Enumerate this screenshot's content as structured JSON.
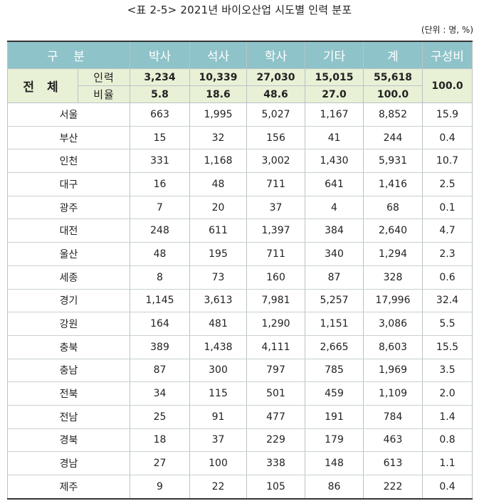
{
  "title": "<표 2-5> 2021년 바이오산업 시도별 인력 분포",
  "unit": "(단위 : 명, %)",
  "header": {
    "gubun": "구 분",
    "columns": [
      "박사",
      "석사",
      "학사",
      "기타",
      "계",
      "구성비"
    ]
  },
  "total": {
    "label": "전 체",
    "rows": [
      {
        "label": "인력",
        "values": [
          "3,234",
          "10,339",
          "27,030",
          "15,015",
          "55,618"
        ]
      },
      {
        "label": "비율",
        "values": [
          "5.8",
          "18.6",
          "48.6",
          "27.0",
          "100.0"
        ]
      }
    ],
    "ratio": "100.0"
  },
  "regions": [
    {
      "name": "서울",
      "values": [
        "663",
        "1,995",
        "5,027",
        "1,167",
        "8,852",
        "15.9"
      ]
    },
    {
      "name": "부산",
      "values": [
        "15",
        "32",
        "156",
        "41",
        "244",
        "0.4"
      ]
    },
    {
      "name": "인천",
      "values": [
        "331",
        "1,168",
        "3,002",
        "1,430",
        "5,931",
        "10.7"
      ]
    },
    {
      "name": "대구",
      "values": [
        "16",
        "48",
        "711",
        "641",
        "1,416",
        "2.5"
      ]
    },
    {
      "name": "광주",
      "values": [
        "7",
        "20",
        "37",
        "4",
        "68",
        "0.1"
      ]
    },
    {
      "name": "대전",
      "values": [
        "248",
        "611",
        "1,397",
        "384",
        "2,640",
        "4.7"
      ]
    },
    {
      "name": "울산",
      "values": [
        "48",
        "195",
        "711",
        "340",
        "1,294",
        "2.3"
      ]
    },
    {
      "name": "세종",
      "values": [
        "8",
        "73",
        "160",
        "87",
        "328",
        "0.6"
      ]
    },
    {
      "name": "경기",
      "values": [
        "1,145",
        "3,613",
        "7,981",
        "5,257",
        "17,996",
        "32.4"
      ]
    },
    {
      "name": "강원",
      "values": [
        "164",
        "481",
        "1,290",
        "1,151",
        "3,086",
        "5.5"
      ]
    },
    {
      "name": "충북",
      "values": [
        "389",
        "1,438",
        "4,111",
        "2,665",
        "8,603",
        "15.5"
      ]
    },
    {
      "name": "충남",
      "values": [
        "87",
        "300",
        "797",
        "785",
        "1,969",
        "3.5"
      ]
    },
    {
      "name": "전북",
      "values": [
        "34",
        "115",
        "501",
        "459",
        "1,109",
        "2.0"
      ]
    },
    {
      "name": "전남",
      "values": [
        "25",
        "91",
        "477",
        "191",
        "784",
        "1.4"
      ]
    },
    {
      "name": "경북",
      "values": [
        "18",
        "37",
        "229",
        "179",
        "463",
        "0.8"
      ]
    },
    {
      "name": "경남",
      "values": [
        "27",
        "100",
        "338",
        "148",
        "613",
        "1.1"
      ]
    },
    {
      "name": "제주",
      "values": [
        "9",
        "22",
        "105",
        "86",
        "222",
        "0.4"
      ]
    }
  ],
  "colors": {
    "header_bg": "#8ec3c9",
    "total_bg": "#e8f0d6"
  }
}
